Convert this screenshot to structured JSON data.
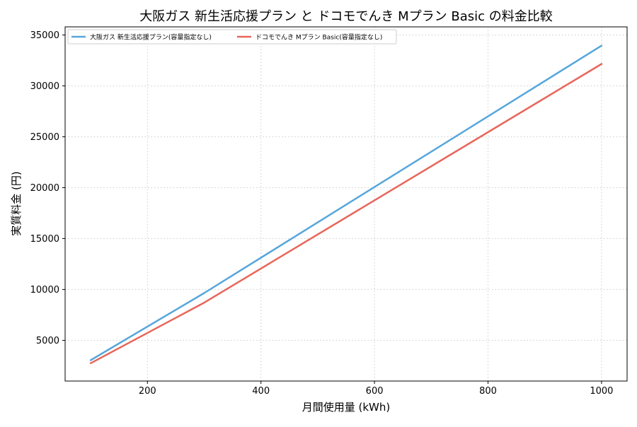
{
  "chart_data": {
    "type": "line",
    "title": "大阪ガス 新生活応援プラン と ドコモでんき Mプラン Basic の料金比較",
    "xlabel": "月間使用量 (kWh)",
    "ylabel": "実質料金 (円)",
    "xlim": [
      55,
      1045
    ],
    "ylim": [
      1000,
      35800
    ],
    "xticks": [
      200,
      400,
      600,
      800,
      1000
    ],
    "yticks": [
      5000,
      10000,
      15000,
      20000,
      25000,
      30000,
      35000
    ],
    "grid": true,
    "legend_position": "top-left",
    "series": [
      {
        "name": "大阪ガス 新生活応援プラン(容量指定なし)",
        "color": "#55a6dc",
        "x": [
          100,
          300,
          1000
        ],
        "y": [
          3050,
          9650,
          33950
        ]
      },
      {
        "name": "ドコモでんき Mプラン Basic(容量指定なし)",
        "color": "#e8665a",
        "x": [
          100,
          300,
          1000
        ],
        "y": [
          2750,
          8700,
          32150
        ]
      }
    ]
  }
}
